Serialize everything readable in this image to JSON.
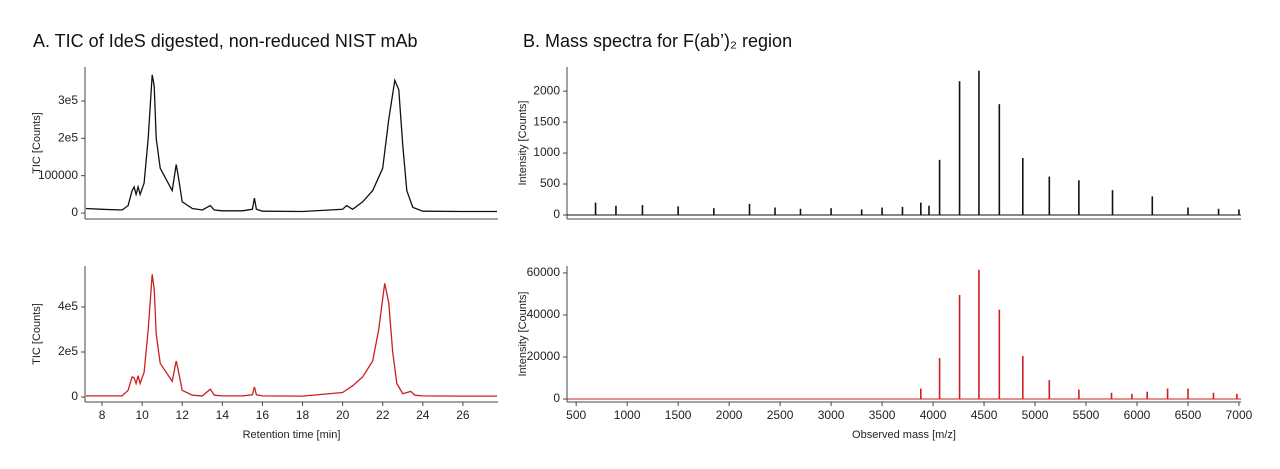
{
  "chart_data": [
    {
      "type": "line",
      "title": "A. TIC of IdeS digested, non-reduced NIST mAb",
      "ylabel": "TIC [Counts]",
      "color": "#111111",
      "xlim": [
        7.15,
        27.75
      ],
      "ylim": [
        -16000,
        391000
      ],
      "yticks": [
        0,
        100000,
        {
          "value": 200000,
          "label": "2e5"
        },
        {
          "value": 300000,
          "label": "3e5"
        }
      ],
      "x": [
        7.2,
        8,
        9,
        9.3,
        9.5,
        9.6,
        9.7,
        9.8,
        9.9,
        10.1,
        10.3,
        10.5,
        10.6,
        10.7,
        10.9,
        11.2,
        11.5,
        11.7,
        11.8,
        12,
        12.5,
        13,
        13.4,
        13.6,
        14,
        15,
        15.5,
        15.6,
        15.7,
        16,
        18,
        20,
        20.2,
        20.5,
        21,
        21.5,
        22,
        22.3,
        22.6,
        22.8,
        23,
        23.2,
        23.5,
        24,
        26,
        27.7
      ],
      "values": [
        12000,
        10000,
        8000,
        20000,
        60000,
        70000,
        50000,
        70000,
        50000,
        80000,
        200000,
        370000,
        340000,
        200000,
        120000,
        90000,
        60000,
        130000,
        100000,
        30000,
        12000,
        8000,
        20000,
        8000,
        6000,
        6000,
        10000,
        40000,
        10000,
        5000,
        4000,
        10000,
        20000,
        10000,
        30000,
        60000,
        120000,
        250000,
        355000,
        330000,
        180000,
        60000,
        15000,
        5000,
        4000,
        4000
      ]
    },
    {
      "type": "line",
      "ylabel": "TIC [Counts]",
      "xlabel": "Retention time [min]",
      "color": "#cc1f1f",
      "xlim": [
        7.15,
        27.75
      ],
      "ylim": [
        -22000,
        582000
      ],
      "xticks": [
        8,
        10,
        12,
        14,
        16,
        18,
        20,
        22,
        24,
        26
      ],
      "yticks": [
        0,
        {
          "value": 200000,
          "label": "2e5"
        },
        {
          "value": 400000,
          "label": "4e5"
        }
      ],
      "x": [
        7.2,
        8,
        9,
        9.3,
        9.5,
        9.6,
        9.7,
        9.8,
        9.9,
        10.1,
        10.3,
        10.5,
        10.6,
        10.7,
        10.9,
        11.2,
        11.5,
        11.7,
        11.8,
        12,
        12.5,
        13,
        13.4,
        13.6,
        14,
        15,
        15.5,
        15.6,
        15.7,
        16,
        18,
        20,
        20.5,
        21,
        21.5,
        21.8,
        22.1,
        22.3,
        22.5,
        22.7,
        23,
        23.4,
        23.6,
        24,
        26,
        27.7
      ],
      "values": [
        5000,
        5000,
        5000,
        30000,
        90000,
        85000,
        60000,
        95000,
        60000,
        110000,
        300000,
        545000,
        480000,
        280000,
        150000,
        110000,
        70000,
        160000,
        120000,
        30000,
        8000,
        5000,
        35000,
        8000,
        5000,
        5000,
        10000,
        45000,
        10000,
        5000,
        4000,
        20000,
        50000,
        90000,
        160000,
        300000,
        505000,
        420000,
        200000,
        60000,
        15000,
        25000,
        8000,
        5000,
        4000,
        4000
      ]
    },
    {
      "type": "spectrum",
      "title": "B. Mass spectra for F(ab’)₂ region",
      "ylabel": "Intensity [Counts]",
      "color": "#111111",
      "xlim": [
        410,
        7020
      ],
      "ylim": [
        -65,
        2390
      ],
      "yticks": [
        0,
        500,
        1000,
        1500,
        2000
      ],
      "x": [
        690,
        890,
        1150,
        1500,
        1850,
        2200,
        2450,
        2700,
        3000,
        3300,
        3500,
        3700,
        3880,
        3960,
        4064,
        4260,
        4450,
        4650,
        4880,
        5140,
        5430,
        5760,
        6150,
        6500,
        6800,
        7000
      ],
      "values": [
        200,
        150,
        160,
        140,
        110,
        180,
        120,
        100,
        110,
        90,
        120,
        130,
        200,
        150,
        890,
        2160,
        2330,
        1790,
        920,
        620,
        560,
        400,
        300,
        120,
        100,
        90
      ]
    },
    {
      "type": "spectrum",
      "ylabel": "Intensity [Counts]",
      "xlabel": "Observed mass [m/z]",
      "color": "#cc1f1f",
      "xlim": [
        410,
        7020
      ],
      "ylim": [
        -1400,
        63300
      ],
      "xticks": [
        500,
        1000,
        1500,
        2000,
        2500,
        3000,
        3500,
        4000,
        4500,
        5000,
        5500,
        6000,
        6500,
        7000
      ],
      "yticks": [
        0,
        20000,
        40000,
        60000
      ],
      "x": [
        3880,
        4064,
        4260,
        4450,
        4650,
        4880,
        5140,
        5430,
        5750,
        5950,
        6100,
        6300,
        6500,
        6750,
        6980
      ],
      "values": [
        5000,
        19500,
        49500,
        61500,
        42500,
        20500,
        9000,
        4500,
        3000,
        2500,
        3500,
        5000,
        5000,
        3000,
        2500
      ]
    }
  ]
}
